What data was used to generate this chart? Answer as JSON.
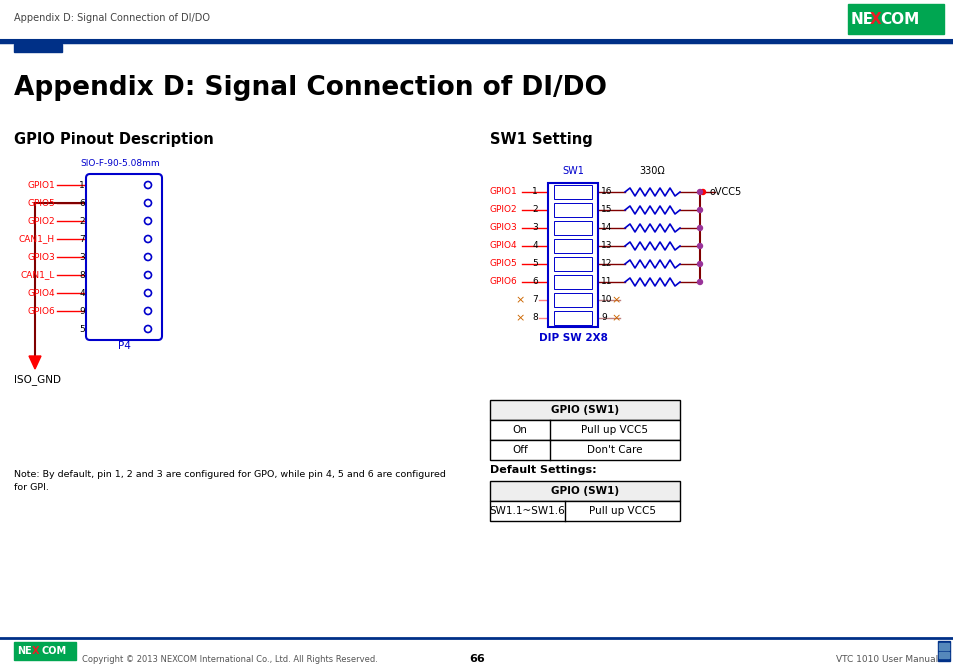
{
  "title": "Appendix D: Signal Connection of DI/DO",
  "header_text": "Appendix D: Signal Connection of DI/DO",
  "page_number": "66",
  "footer_left": "Copyright © 2013 NEXCOM International Co., Ltd. All Rights Reserved.",
  "footer_right": "VTC 1010 User Manual",
  "section1_title": "GPIO Pinout Description",
  "section2_title": "SW1 Setting",
  "connector_label": "SIO-F-90-5.08mm",
  "connector_p4": "P4",
  "connector_gnd": "ISO_GND",
  "gpio_pins": [
    {
      "label": "GPIO1",
      "pin": "1"
    },
    {
      "label": "GPIO5",
      "pin": "6"
    },
    {
      "label": "GPIO2",
      "pin": "2"
    },
    {
      "label": "CAN1_H",
      "pin": "7"
    },
    {
      "label": "GPIO3",
      "pin": "3"
    },
    {
      "label": "CAN1_L",
      "pin": "8"
    },
    {
      "label": "GPIO4",
      "pin": "4"
    },
    {
      "label": "GPIO6",
      "pin": "9"
    },
    {
      "label": "",
      "pin": "5"
    }
  ],
  "sw1_label": "SW1",
  "dip_label": "DIP SW 2X8",
  "resistor_label": "330Ω",
  "vcc5_label": "VCC5",
  "sw1_gpio_pins": [
    {
      "label": "GPIO1",
      "pin": "1",
      "right_pin": "16",
      "has_resistor": true
    },
    {
      "label": "GPIO2",
      "pin": "2",
      "right_pin": "15",
      "has_resistor": true
    },
    {
      "label": "GPIO3",
      "pin": "3",
      "right_pin": "14",
      "has_resistor": true
    },
    {
      "label": "GPIO4",
      "pin": "4",
      "right_pin": "13",
      "has_resistor": true
    },
    {
      "label": "GPIO5",
      "pin": "5",
      "right_pin": "12",
      "has_resistor": true
    },
    {
      "label": "GPIO6",
      "pin": "6",
      "right_pin": "11",
      "has_resistor": true
    },
    {
      "label": "",
      "pin": "7",
      "right_pin": "10",
      "has_resistor": false
    },
    {
      "label": "",
      "pin": "8",
      "right_pin": "9",
      "has_resistor": false
    }
  ],
  "table1_header": "GPIO (SW1)",
  "table1_rows": [
    [
      "On",
      "Pull up VCC5"
    ],
    [
      "Off",
      "Don't Care"
    ]
  ],
  "table2_label": "Default Settings:",
  "table2_header": "GPIO (SW1)",
  "table2_rows": [
    [
      "SW1.1~SW1.6",
      "Pull up VCC5"
    ]
  ],
  "note_text": "Note: By default, pin 1, 2 and 3 are configured for GPO, while pin 4, 5 and 6 are configured\nfor GPI.",
  "red": "#FF0000",
  "blue": "#0000CC",
  "dark_red": "#800000",
  "purple": "#993399",
  "black": "#000000",
  "white": "#FFFFFF",
  "nexcom_green": "#00A651",
  "nexcom_red": "#ED1C24",
  "blue_bar": "#003087",
  "orange_x": "#CC6600"
}
